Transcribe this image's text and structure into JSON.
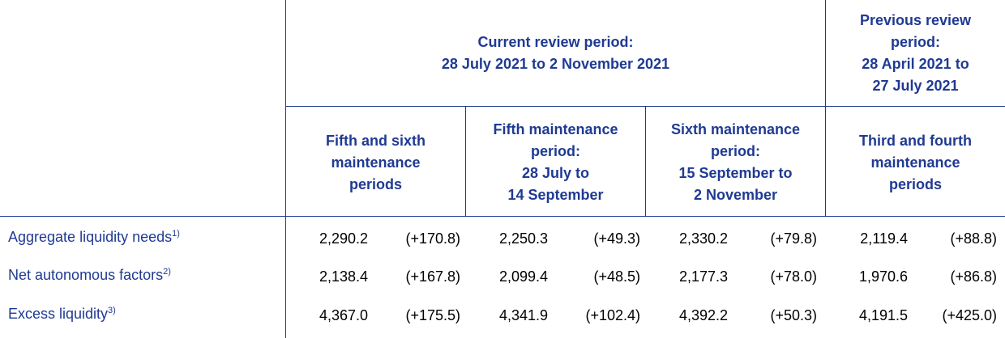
{
  "header": {
    "current_period": [
      "Current review period:",
      "28 July 2021 to 2 November 2021"
    ],
    "previous_period": [
      "Previous review",
      "period:",
      "28 April 2021 to",
      "27 July 2021"
    ],
    "columns": [
      [
        "Fifth and sixth",
        "maintenance",
        "periods"
      ],
      [
        "Fifth maintenance",
        "period:",
        "28 July to",
        "14 September"
      ],
      [
        "Sixth maintenance",
        "period:",
        "15 September to",
        "2 November"
      ],
      [
        "Third and fourth",
        "maintenance",
        "periods"
      ]
    ]
  },
  "rows": [
    {
      "label": "Aggregate liquidity needs",
      "note": "1)",
      "values": [
        "2,290.2",
        "(+170.8)",
        "2,250.3",
        "(+49.3)",
        "2,330.2",
        "(+79.8)",
        "2,119.4",
        "(+88.8)"
      ]
    },
    {
      "label": "Net autonomous factors",
      "note": "2)",
      "values": [
        "2,138.4",
        "(+167.8)",
        "2,099.4",
        "(+48.5)",
        "2,177.3",
        "(+78.0)",
        "1,970.6",
        "(+86.8)"
      ]
    },
    {
      "label": "Excess liquidity",
      "note": "3)",
      "values": [
        "4,367.0",
        "(+175.5)",
        "4,341.9",
        "(+102.4)",
        "4,392.2",
        "(+50.3)",
        "4,191.5",
        "(+425.0)"
      ]
    }
  ]
}
